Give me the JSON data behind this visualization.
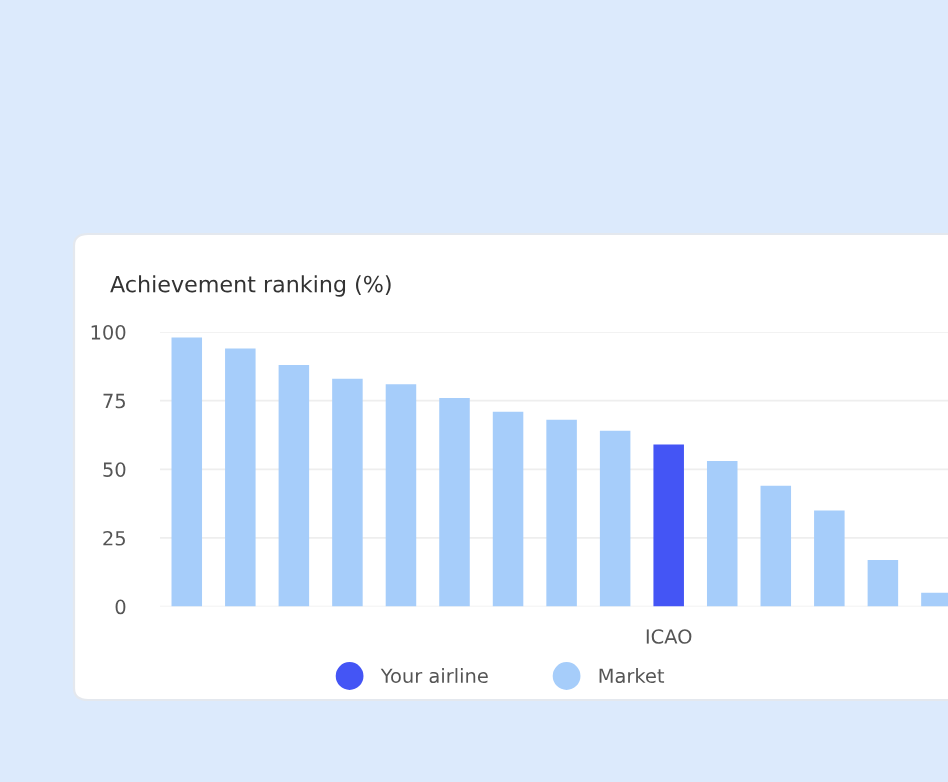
{
  "chart_data": {
    "type": "bar",
    "title": "Achievement ranking (%)",
    "categories": [
      null,
      null,
      null,
      null,
      null,
      null,
      null,
      null,
      null,
      "ICAO",
      null,
      null,
      null,
      null,
      null
    ],
    "series": [
      {
        "name": "Your airline",
        "color": "#4455f5",
        "values": [
          null,
          null,
          null,
          null,
          null,
          null,
          null,
          null,
          null,
          59,
          null,
          null,
          null,
          null,
          null
        ]
      },
      {
        "name": "Market",
        "color": "#a6cdfa",
        "values": [
          98,
          94,
          88,
          83,
          81,
          76,
          71,
          68,
          64,
          null,
          53,
          44,
          35,
          17,
          5
        ]
      }
    ],
    "ylim": [
      0,
      100
    ],
    "yticks": [
      0,
      25,
      50,
      75,
      100
    ],
    "grid": "y",
    "legend": "bottom"
  }
}
